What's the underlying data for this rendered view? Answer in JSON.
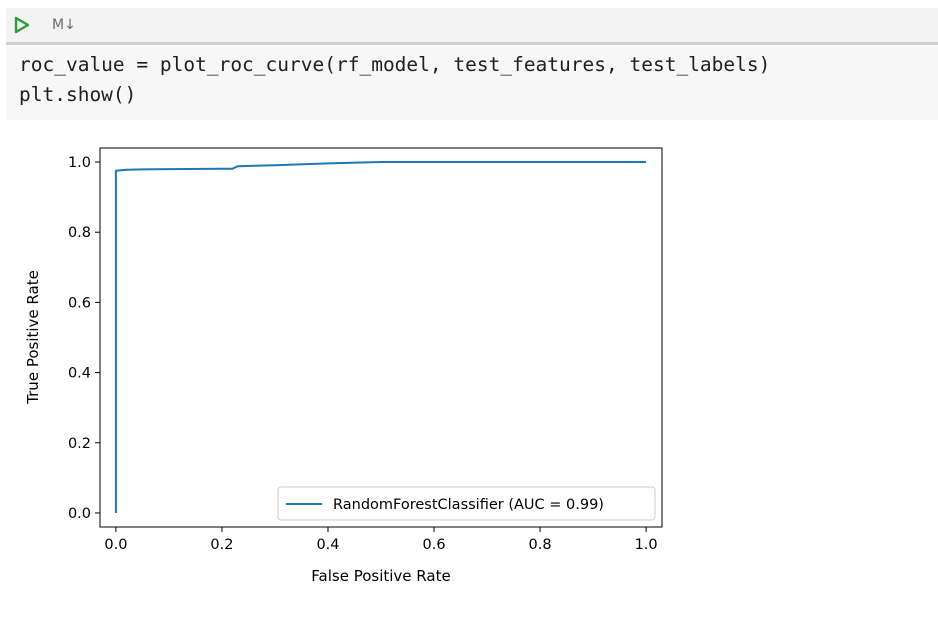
{
  "toolbar": {
    "run_icon": "run-triangle-icon",
    "cell_type_label": "M↓",
    "accent_color": "#2e9e3a"
  },
  "code": {
    "lines": [
      "roc_value = plot_roc_curve(rf_model, test_features, test_labels)",
      "plt.show()"
    ]
  },
  "chart_data": {
    "type": "line",
    "xlabel": "False Positive Rate",
    "ylabel": "True Positive Rate",
    "xlim": [
      -0.03,
      1.03
    ],
    "ylim": [
      -0.04,
      1.04
    ],
    "x_ticks": [
      0.0,
      0.2,
      0.4,
      0.6,
      0.8,
      1.0
    ],
    "x_tick_labels": [
      "0.0",
      "0.2",
      "0.4",
      "0.6",
      "0.8",
      "1.0"
    ],
    "y_ticks": [
      0.0,
      0.2,
      0.4,
      0.6,
      0.8,
      1.0
    ],
    "y_tick_labels": [
      "0.0",
      "0.2",
      "0.4",
      "0.6",
      "0.8",
      "1.0"
    ],
    "grid": false,
    "legend_position": "lower-right",
    "series": [
      {
        "name": "RandomForestClassifier (AUC = 0.99)",
        "color": "#1f77b4",
        "x": [
          0.0,
          0.0,
          0.005,
          0.02,
          0.05,
          0.1,
          0.2,
          0.22,
          0.23,
          0.3,
          0.4,
          0.5,
          0.52,
          0.6,
          0.8,
          1.0
        ],
        "y": [
          0.0,
          0.975,
          0.976,
          0.978,
          0.979,
          0.98,
          0.981,
          0.981,
          0.988,
          0.991,
          0.996,
          1.0,
          1.0,
          1.0,
          1.0,
          1.0
        ]
      }
    ]
  }
}
